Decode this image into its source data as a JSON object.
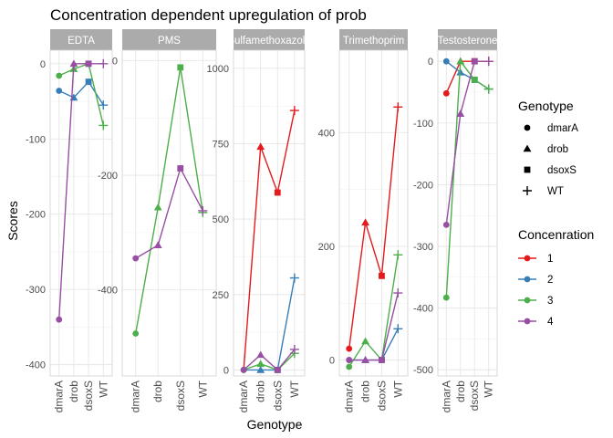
{
  "chart_data": {
    "type": "line",
    "title": "Concentration dependent upregulation of prob",
    "xlabel": "Genotype",
    "ylabel": "Scores",
    "categories": [
      "dmarA",
      "drob",
      "dsoxS",
      "WT"
    ],
    "grid": true,
    "legend_position": "right",
    "legend_shape": {
      "title": "Genotype",
      "entries": [
        {
          "label": "dmarA",
          "shape": "circle"
        },
        {
          "label": "drob",
          "shape": "triangle"
        },
        {
          "label": "dsoxS",
          "shape": "square"
        },
        {
          "label": "WT",
          "shape": "plus"
        }
      ]
    },
    "legend_color": {
      "title": "Concenration",
      "entries": [
        {
          "label": "1",
          "color": "#e41a1c"
        },
        {
          "label": "2",
          "color": "#377eb8"
        },
        {
          "label": "3",
          "color": "#4daf4a"
        },
        {
          "label": "4",
          "color": "#984ea3"
        }
      ]
    },
    "panels": [
      {
        "strip": "EDTA",
        "ylim": [
          -415,
          18
        ],
        "yticks": [
          0,
          -100,
          -200,
          -300,
          -400
        ],
        "series": [
          {
            "name": "2",
            "values": [
              -36,
              -45,
              -24,
              -55
            ]
          },
          {
            "name": "3",
            "values": [
              -16,
              -7,
              0,
              -82
            ]
          },
          {
            "name": "4",
            "values": [
              -340,
              0,
              0,
              0
            ]
          }
        ]
      },
      {
        "strip": "PMS",
        "ylim": [
          -550,
          18
        ],
        "yticks": [
          0,
          -200,
          -400
        ],
        "series": [
          {
            "name": "3",
            "values": [
              -476,
              -256,
              -12,
              -265
            ]
          },
          {
            "name": "4",
            "values": [
              -345,
              -322,
              -188,
              -262
            ]
          }
        ]
      },
      {
        "strip": "Sulfamethoxazole",
        "ylim": [
          -20,
          1060
        ],
        "yticks": [
          0,
          250,
          500,
          750,
          1000
        ],
        "series": [
          {
            "name": "1",
            "values": [
              0,
              740,
              588,
              860
            ]
          },
          {
            "name": "2",
            "values": [
              0,
              0,
              0,
              305
            ]
          },
          {
            "name": "3",
            "values": [
              0,
              20,
              0,
              55
            ]
          },
          {
            "name": "4",
            "values": [
              0,
              50,
              0,
              68
            ]
          }
        ]
      },
      {
        "strip": "Trimethoprim",
        "ylim": [
          -28,
          545
        ],
        "yticks": [
          0,
          200,
          400
        ],
        "series": [
          {
            "name": "1",
            "values": [
              20,
              242,
              148,
              445
            ]
          },
          {
            "name": "2",
            "values": [
              0,
              0,
              0,
              55
            ]
          },
          {
            "name": "3",
            "values": [
              -12,
              33,
              0,
              185
            ]
          },
          {
            "name": "4",
            "values": [
              0,
              0,
              0,
              118
            ]
          }
        ]
      },
      {
        "strip": "Testosterone",
        "ylim": [
          -510,
          18
        ],
        "yticks": [
          0,
          -100,
          -200,
          -300,
          -400,
          -500
        ],
        "series": [
          {
            "name": "1",
            "values": [
              -52,
              0,
              0,
              0
            ]
          },
          {
            "name": "2",
            "values": [
              0,
              -18,
              -30,
              -45
            ]
          },
          {
            "name": "3",
            "values": [
              -383,
              0,
              -30,
              -45
            ]
          },
          {
            "name": "4",
            "values": [
              -265,
              -85,
              0,
              0
            ]
          }
        ]
      }
    ]
  }
}
